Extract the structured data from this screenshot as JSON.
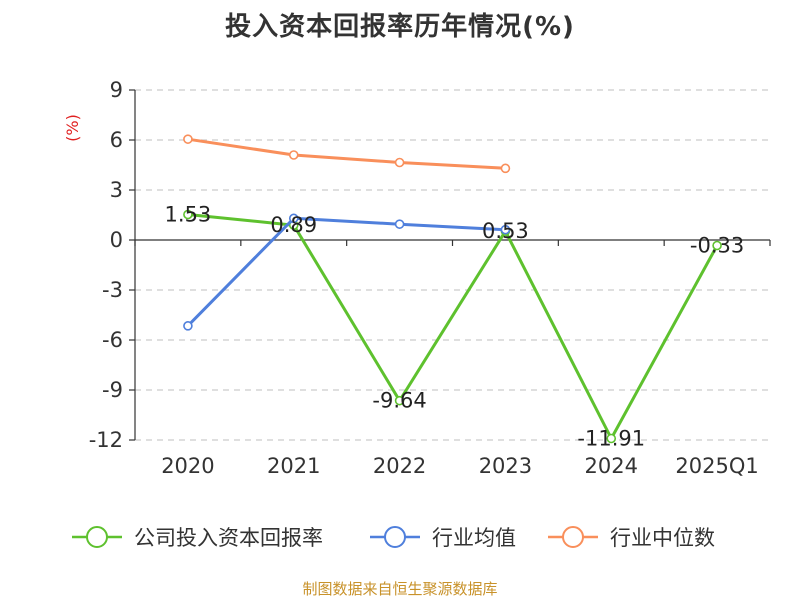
{
  "title": "投入资本回报率历年情况(%)",
  "source": "制图数据来自恒生聚源数据库",
  "chart_data": {
    "type": "line",
    "title": "投入资本回报率历年情况(%)",
    "ylabel": "(%)",
    "xlabel": "",
    "categories": [
      "2020",
      "2021",
      "2022",
      "2023",
      "2024",
      "2025Q1"
    ],
    "ylim": [
      -12,
      9
    ],
    "yticks": [
      9,
      6,
      3,
      0,
      -3,
      -6,
      -9,
      -12
    ],
    "grid": true,
    "legend_position": "bottom",
    "series": [
      {
        "name": "公司投入资本回报率",
        "color": "#5ec12e",
        "values": [
          1.53,
          0.89,
          -9.64,
          0.53,
          -11.91,
          -0.33
        ],
        "labels": [
          "1.53",
          "0.89",
          "-9.64",
          "0.53",
          "-11.91",
          "-0.33"
        ]
      },
      {
        "name": "行业均值",
        "color": "#4f7fdc",
        "values": [
          -5.15,
          1.3,
          0.95,
          0.62,
          null,
          null
        ]
      },
      {
        "name": "行业中位数",
        "color": "#f98f5b",
        "values": [
          6.05,
          5.1,
          4.65,
          4.3,
          null,
          null
        ]
      }
    ]
  }
}
